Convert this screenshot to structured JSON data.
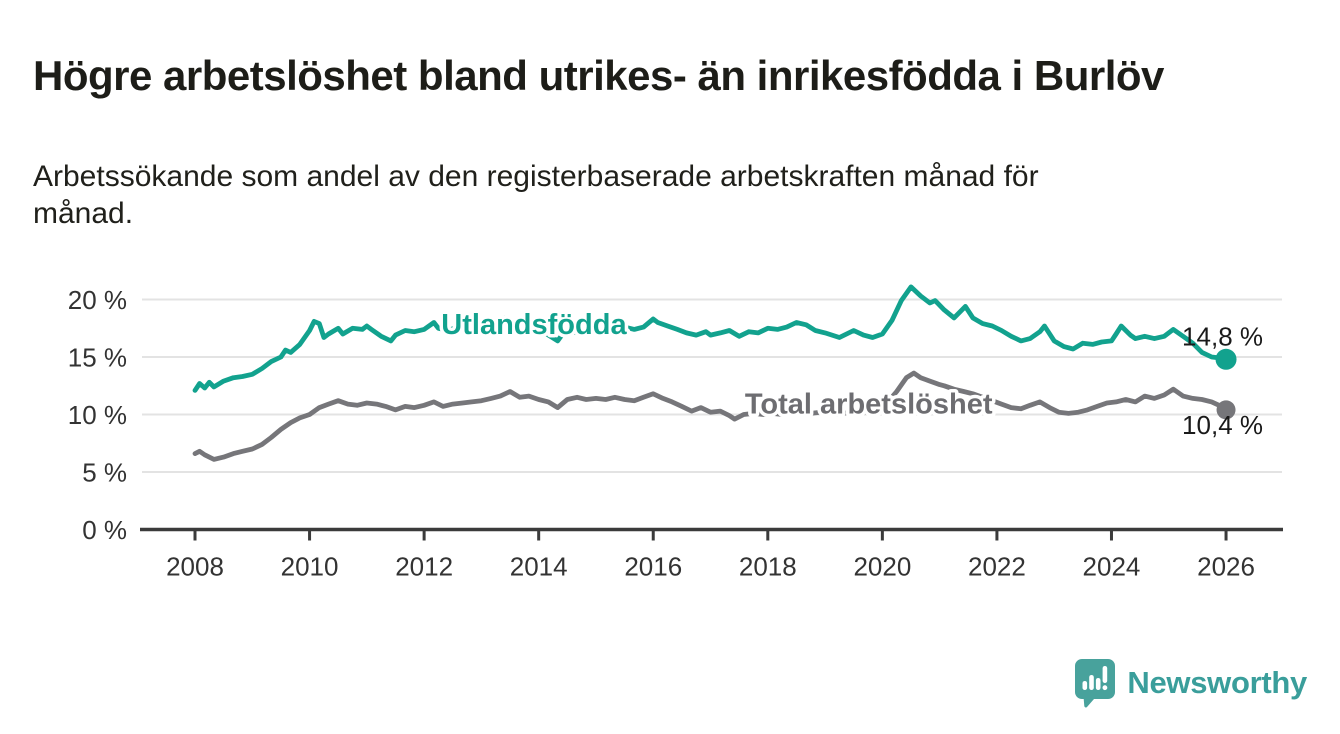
{
  "header": {
    "title": "Högre arbetslöshet bland utrikes- än inrikesfödda i Burlöv",
    "subtitle_line1": "Arbetssökande som andel av den registerbaserade arbetskraften månad för",
    "subtitle_line2": "månad."
  },
  "footer": {
    "brand": "Newsworthy",
    "logo_icon": "bar-chart-speech-bubble-icon",
    "brand_color": "#3a9e9b",
    "logo_fill": "#48a29c"
  },
  "colors": {
    "teal_line": "#12a28e",
    "gray_line": "#76767a",
    "gray_label": "#6d6d71",
    "grid": "#e3e3e3",
    "axis": "#3b3b3b",
    "tick_text": "#333333",
    "value_text": "#1a1a1a"
  },
  "chart_data": {
    "type": "line",
    "title": "Högre arbetslöshet bland utrikes- än inrikesfödda i Burlöv",
    "subtitle": "Arbetssökande som andel av den registerbaserade arbetskraften månad för månad.",
    "xlabel": "",
    "ylabel": "",
    "unit": "%",
    "xlim": [
      2007.0,
      2027.0
    ],
    "ylim": [
      0,
      22
    ],
    "grid": true,
    "legend": "inline-labels",
    "x_ticks": [
      {
        "value": 2008,
        "label": "2008"
      },
      {
        "value": 2010,
        "label": "2010"
      },
      {
        "value": 2012,
        "label": "2012"
      },
      {
        "value": 2014,
        "label": "2014"
      },
      {
        "value": 2016,
        "label": "2016"
      },
      {
        "value": 2018,
        "label": "2018"
      },
      {
        "value": 2020,
        "label": "2020"
      },
      {
        "value": 2022,
        "label": "2022"
      },
      {
        "value": 2024,
        "label": "2024"
      },
      {
        "value": 2026,
        "label": "2026"
      }
    ],
    "y_ticks": [
      {
        "value": 0,
        "label": "0 %"
      },
      {
        "value": 5,
        "label": "5 %"
      },
      {
        "value": 10,
        "label": "10 %"
      },
      {
        "value": 15,
        "label": "15 %"
      },
      {
        "value": 20,
        "label": "20 %"
      }
    ],
    "series": [
      {
        "name": "Total arbetslöshet",
        "color": "#76767a",
        "label_color": "#6d6d71",
        "end_label": "10,4 %",
        "end_value": 10.4,
        "label_at": {
          "year": 2017.6,
          "value": 10.1
        },
        "points": [
          [
            2008.0,
            6.6
          ],
          [
            2008.08,
            6.8
          ],
          [
            2008.17,
            6.5
          ],
          [
            2008.33,
            6.1
          ],
          [
            2008.5,
            6.3
          ],
          [
            2008.67,
            6.6
          ],
          [
            2008.83,
            6.8
          ],
          [
            2009.0,
            7.0
          ],
          [
            2009.17,
            7.4
          ],
          [
            2009.33,
            8.0
          ],
          [
            2009.5,
            8.7
          ],
          [
            2009.67,
            9.3
          ],
          [
            2009.83,
            9.7
          ],
          [
            2010.0,
            10.0
          ],
          [
            2010.17,
            10.6
          ],
          [
            2010.33,
            10.9
          ],
          [
            2010.5,
            11.2
          ],
          [
            2010.67,
            10.9
          ],
          [
            2010.83,
            10.8
          ],
          [
            2011.0,
            11.0
          ],
          [
            2011.17,
            10.9
          ],
          [
            2011.33,
            10.7
          ],
          [
            2011.5,
            10.4
          ],
          [
            2011.67,
            10.7
          ],
          [
            2011.83,
            10.6
          ],
          [
            2012.0,
            10.8
          ],
          [
            2012.17,
            11.1
          ],
          [
            2012.33,
            10.7
          ],
          [
            2012.5,
            10.9
          ],
          [
            2012.67,
            11.0
          ],
          [
            2012.83,
            11.1
          ],
          [
            2013.0,
            11.2
          ],
          [
            2013.17,
            11.4
          ],
          [
            2013.33,
            11.6
          ],
          [
            2013.5,
            12.0
          ],
          [
            2013.67,
            11.5
          ],
          [
            2013.83,
            11.6
          ],
          [
            2014.0,
            11.3
          ],
          [
            2014.17,
            11.1
          ],
          [
            2014.33,
            10.6
          ],
          [
            2014.5,
            11.3
          ],
          [
            2014.67,
            11.5
          ],
          [
            2014.83,
            11.3
          ],
          [
            2015.0,
            11.4
          ],
          [
            2015.17,
            11.3
          ],
          [
            2015.33,
            11.5
          ],
          [
            2015.5,
            11.3
          ],
          [
            2015.67,
            11.2
          ],
          [
            2015.83,
            11.5
          ],
          [
            2016.0,
            11.8
          ],
          [
            2016.17,
            11.4
          ],
          [
            2016.33,
            11.1
          ],
          [
            2016.5,
            10.7
          ],
          [
            2016.67,
            10.3
          ],
          [
            2016.83,
            10.6
          ],
          [
            2017.0,
            10.2
          ],
          [
            2017.17,
            10.3
          ],
          [
            2017.33,
            9.9
          ],
          [
            2017.42,
            9.6
          ],
          [
            2017.58,
            10.0
          ],
          [
            2017.75,
            10.1
          ],
          [
            2017.92,
            10.0
          ],
          [
            2018.08,
            10.1
          ],
          [
            2018.25,
            10.0
          ],
          [
            2018.42,
            10.2
          ],
          [
            2018.58,
            10.3
          ],
          [
            2018.75,
            10.1
          ],
          [
            2018.92,
            10.2
          ],
          [
            2019.08,
            10.1
          ],
          [
            2019.25,
            10.0
          ],
          [
            2019.42,
            10.2
          ],
          [
            2019.58,
            10.3
          ],
          [
            2019.75,
            10.2
          ],
          [
            2019.92,
            10.5
          ],
          [
            2020.08,
            11.0
          ],
          [
            2020.25,
            12.0
          ],
          [
            2020.42,
            13.2
          ],
          [
            2020.55,
            13.6
          ],
          [
            2020.67,
            13.2
          ],
          [
            2020.83,
            12.9
          ],
          [
            2021.0,
            12.6
          ],
          [
            2021.08,
            12.5
          ],
          [
            2021.25,
            12.2
          ],
          [
            2021.42,
            12.0
          ],
          [
            2021.58,
            11.8
          ],
          [
            2021.75,
            11.5
          ],
          [
            2021.92,
            11.2
          ],
          [
            2022.08,
            10.9
          ],
          [
            2022.25,
            10.6
          ],
          [
            2022.42,
            10.5
          ],
          [
            2022.58,
            10.8
          ],
          [
            2022.75,
            11.1
          ],
          [
            2022.92,
            10.6
          ],
          [
            2023.08,
            10.2
          ],
          [
            2023.25,
            10.1
          ],
          [
            2023.42,
            10.2
          ],
          [
            2023.58,
            10.4
          ],
          [
            2023.75,
            10.7
          ],
          [
            2023.92,
            11.0
          ],
          [
            2024.08,
            11.1
          ],
          [
            2024.25,
            11.3
          ],
          [
            2024.42,
            11.1
          ],
          [
            2024.58,
            11.6
          ],
          [
            2024.75,
            11.4
          ],
          [
            2024.92,
            11.7
          ],
          [
            2025.08,
            12.2
          ],
          [
            2025.25,
            11.6
          ],
          [
            2025.42,
            11.4
          ],
          [
            2025.58,
            11.3
          ],
          [
            2025.75,
            11.1
          ],
          [
            2025.92,
            10.7
          ],
          [
            2026.0,
            10.4
          ]
        ]
      },
      {
        "name": "Utlandsfödda",
        "color": "#12a28e",
        "label_color": "#12a28e",
        "end_label": "14,8 %",
        "end_value": 14.8,
        "label_at": {
          "year": 2012.3,
          "value": 17.0
        },
        "points": [
          [
            2008.0,
            12.1
          ],
          [
            2008.08,
            12.7
          ],
          [
            2008.17,
            12.3
          ],
          [
            2008.25,
            12.8
          ],
          [
            2008.33,
            12.4
          ],
          [
            2008.5,
            12.9
          ],
          [
            2008.67,
            13.2
          ],
          [
            2008.83,
            13.3
          ],
          [
            2009.0,
            13.5
          ],
          [
            2009.17,
            14.0
          ],
          [
            2009.33,
            14.6
          ],
          [
            2009.5,
            15.0
          ],
          [
            2009.58,
            15.6
          ],
          [
            2009.67,
            15.4
          ],
          [
            2009.83,
            16.1
          ],
          [
            2010.0,
            17.3
          ],
          [
            2010.08,
            18.1
          ],
          [
            2010.17,
            17.9
          ],
          [
            2010.25,
            16.7
          ],
          [
            2010.33,
            17.0
          ],
          [
            2010.5,
            17.5
          ],
          [
            2010.58,
            17.0
          ],
          [
            2010.75,
            17.5
          ],
          [
            2010.92,
            17.4
          ],
          [
            2011.0,
            17.7
          ],
          [
            2011.08,
            17.4
          ],
          [
            2011.25,
            16.8
          ],
          [
            2011.42,
            16.4
          ],
          [
            2011.5,
            16.9
          ],
          [
            2011.67,
            17.3
          ],
          [
            2011.83,
            17.2
          ],
          [
            2012.0,
            17.4
          ],
          [
            2012.17,
            18.0
          ],
          [
            2012.25,
            17.5
          ],
          [
            2012.42,
            17.3
          ],
          [
            2012.58,
            17.6
          ],
          [
            2012.75,
            17.4
          ],
          [
            2012.92,
            17.5
          ],
          [
            2013.08,
            17.7
          ],
          [
            2013.25,
            18.1
          ],
          [
            2013.42,
            18.4
          ],
          [
            2013.5,
            18.0
          ],
          [
            2013.58,
            17.7
          ],
          [
            2013.75,
            17.6
          ],
          [
            2013.92,
            17.8
          ],
          [
            2014.0,
            17.4
          ],
          [
            2014.17,
            16.9
          ],
          [
            2014.33,
            16.4
          ],
          [
            2014.42,
            17.0
          ],
          [
            2014.5,
            17.3
          ],
          [
            2014.67,
            17.1
          ],
          [
            2014.83,
            17.0
          ],
          [
            2015.0,
            17.3
          ],
          [
            2015.17,
            17.5
          ],
          [
            2015.33,
            17.4
          ],
          [
            2015.5,
            17.6
          ],
          [
            2015.67,
            17.4
          ],
          [
            2015.83,
            17.6
          ],
          [
            2016.0,
            18.3
          ],
          [
            2016.08,
            18.0
          ],
          [
            2016.25,
            17.7
          ],
          [
            2016.42,
            17.4
          ],
          [
            2016.58,
            17.1
          ],
          [
            2016.75,
            16.9
          ],
          [
            2016.92,
            17.2
          ],
          [
            2017.0,
            16.9
          ],
          [
            2017.17,
            17.1
          ],
          [
            2017.33,
            17.3
          ],
          [
            2017.5,
            16.8
          ],
          [
            2017.67,
            17.2
          ],
          [
            2017.83,
            17.1
          ],
          [
            2018.0,
            17.5
          ],
          [
            2018.17,
            17.4
          ],
          [
            2018.33,
            17.6
          ],
          [
            2018.5,
            18.0
          ],
          [
            2018.67,
            17.8
          ],
          [
            2018.83,
            17.3
          ],
          [
            2019.0,
            17.1
          ],
          [
            2019.25,
            16.7
          ],
          [
            2019.5,
            17.3
          ],
          [
            2019.67,
            16.9
          ],
          [
            2019.83,
            16.7
          ],
          [
            2020.0,
            17.0
          ],
          [
            2020.17,
            18.2
          ],
          [
            2020.33,
            19.9
          ],
          [
            2020.5,
            21.1
          ],
          [
            2020.67,
            20.3
          ],
          [
            2020.83,
            19.7
          ],
          [
            2020.92,
            19.9
          ],
          [
            2021.08,
            19.1
          ],
          [
            2021.25,
            18.4
          ],
          [
            2021.45,
            19.4
          ],
          [
            2021.58,
            18.4
          ],
          [
            2021.75,
            17.9
          ],
          [
            2021.92,
            17.7
          ],
          [
            2022.08,
            17.3
          ],
          [
            2022.25,
            16.8
          ],
          [
            2022.42,
            16.4
          ],
          [
            2022.58,
            16.6
          ],
          [
            2022.75,
            17.2
          ],
          [
            2022.83,
            17.7
          ],
          [
            2023.0,
            16.4
          ],
          [
            2023.17,
            15.9
          ],
          [
            2023.33,
            15.7
          ],
          [
            2023.5,
            16.2
          ],
          [
            2023.67,
            16.1
          ],
          [
            2023.83,
            16.3
          ],
          [
            2024.0,
            16.4
          ],
          [
            2024.08,
            17.0
          ],
          [
            2024.17,
            17.7
          ],
          [
            2024.33,
            16.9
          ],
          [
            2024.42,
            16.6
          ],
          [
            2024.58,
            16.8
          ],
          [
            2024.75,
            16.6
          ],
          [
            2024.92,
            16.8
          ],
          [
            2025.08,
            17.4
          ],
          [
            2025.25,
            16.8
          ],
          [
            2025.42,
            16.2
          ],
          [
            2025.58,
            15.4
          ],
          [
            2025.75,
            15.0
          ],
          [
            2025.92,
            14.9
          ],
          [
            2026.0,
            14.8
          ]
        ]
      }
    ]
  }
}
